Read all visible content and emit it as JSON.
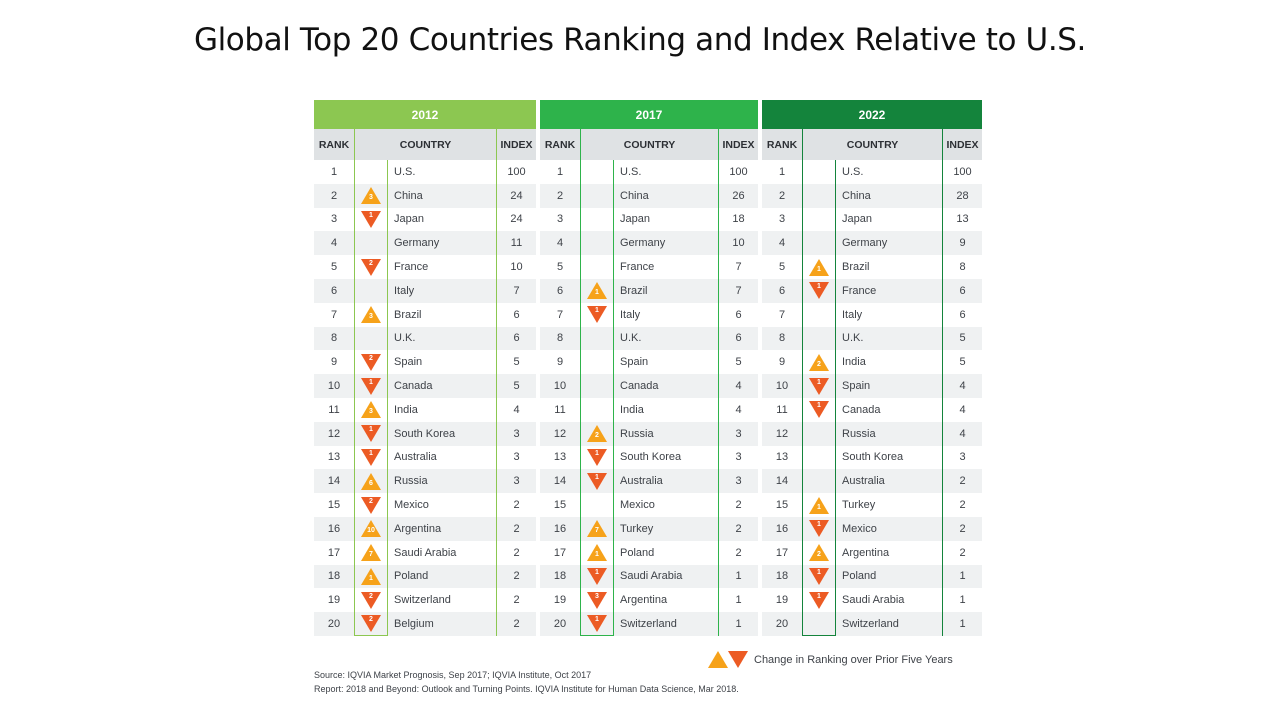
{
  "title": "Global Top 20 Countries Ranking and Index Relative to U.S.",
  "headers": {
    "rank": "RANK",
    "country": "COUNTRY",
    "index": "INDEX"
  },
  "colors": {
    "2012": "#8cc751",
    "2017": "#2eb34b",
    "2022": "#14843c",
    "up": "#f6a21a",
    "down": "#ec5b24"
  },
  "panels": [
    {
      "year": "2012",
      "rows": [
        {
          "rank": "1",
          "country": "U.S.",
          "index": "100",
          "change": null,
          "n": ""
        },
        {
          "rank": "2",
          "country": "China",
          "index": "24",
          "change": "up",
          "n": "3"
        },
        {
          "rank": "3",
          "country": "Japan",
          "index": "24",
          "change": "down",
          "n": "1"
        },
        {
          "rank": "4",
          "country": "Germany",
          "index": "11",
          "change": null,
          "n": ""
        },
        {
          "rank": "5",
          "country": "France",
          "index": "10",
          "change": "down",
          "n": "2"
        },
        {
          "rank": "6",
          "country": "Italy",
          "index": "7",
          "change": null,
          "n": ""
        },
        {
          "rank": "7",
          "country": "Brazil",
          "index": "6",
          "change": "up",
          "n": "3"
        },
        {
          "rank": "8",
          "country": "U.K.",
          "index": "6",
          "change": null,
          "n": ""
        },
        {
          "rank": "9",
          "country": "Spain",
          "index": "5",
          "change": "down",
          "n": "2"
        },
        {
          "rank": "10",
          "country": "Canada",
          "index": "5",
          "change": "down",
          "n": "1"
        },
        {
          "rank": "11",
          "country": "India",
          "index": "4",
          "change": "up",
          "n": "3"
        },
        {
          "rank": "12",
          "country": "South Korea",
          "index": "3",
          "change": "down",
          "n": "1"
        },
        {
          "rank": "13",
          "country": "Australia",
          "index": "3",
          "change": "down",
          "n": "1"
        },
        {
          "rank": "14",
          "country": "Russia",
          "index": "3",
          "change": "up",
          "n": "6"
        },
        {
          "rank": "15",
          "country": "Mexico",
          "index": "2",
          "change": "down",
          "n": "2"
        },
        {
          "rank": "16",
          "country": "Argentina",
          "index": "2",
          "change": "up",
          "n": "10"
        },
        {
          "rank": "17",
          "country": "Saudi Arabia",
          "index": "2",
          "change": "up",
          "n": "7"
        },
        {
          "rank": "18",
          "country": "Poland",
          "index": "2",
          "change": "up",
          "n": "1"
        },
        {
          "rank": "19",
          "country": "Switzerland",
          "index": "2",
          "change": "down",
          "n": "2"
        },
        {
          "rank": "20",
          "country": "Belgium",
          "index": "2",
          "change": "down",
          "n": "2"
        }
      ]
    },
    {
      "year": "2017",
      "rows": [
        {
          "rank": "1",
          "country": "U.S.",
          "index": "100",
          "change": null,
          "n": ""
        },
        {
          "rank": "2",
          "country": "China",
          "index": "26",
          "change": null,
          "n": ""
        },
        {
          "rank": "3",
          "country": "Japan",
          "index": "18",
          "change": null,
          "n": ""
        },
        {
          "rank": "4",
          "country": "Germany",
          "index": "10",
          "change": null,
          "n": ""
        },
        {
          "rank": "5",
          "country": "France",
          "index": "7",
          "change": null,
          "n": ""
        },
        {
          "rank": "6",
          "country": "Brazil",
          "index": "7",
          "change": "up",
          "n": "1"
        },
        {
          "rank": "7",
          "country": "Italy",
          "index": "6",
          "change": "down",
          "n": "1"
        },
        {
          "rank": "8",
          "country": "U.K.",
          "index": "6",
          "change": null,
          "n": ""
        },
        {
          "rank": "9",
          "country": "Spain",
          "index": "5",
          "change": null,
          "n": ""
        },
        {
          "rank": "10",
          "country": "Canada",
          "index": "4",
          "change": null,
          "n": ""
        },
        {
          "rank": "11",
          "country": "India",
          "index": "4",
          "change": null,
          "n": ""
        },
        {
          "rank": "12",
          "country": "Russia",
          "index": "3",
          "change": "up",
          "n": "2"
        },
        {
          "rank": "13",
          "country": "South Korea",
          "index": "3",
          "change": "down",
          "n": "1"
        },
        {
          "rank": "14",
          "country": "Australia",
          "index": "3",
          "change": "down",
          "n": "1"
        },
        {
          "rank": "15",
          "country": "Mexico",
          "index": "2",
          "change": null,
          "n": ""
        },
        {
          "rank": "16",
          "country": "Turkey",
          "index": "2",
          "change": "up",
          "n": "7"
        },
        {
          "rank": "17",
          "country": "Poland",
          "index": "2",
          "change": "up",
          "n": "1"
        },
        {
          "rank": "18",
          "country": "Saudi Arabia",
          "index": "1",
          "change": "down",
          "n": "1"
        },
        {
          "rank": "19",
          "country": "Argentina",
          "index": "1",
          "change": "down",
          "n": "3"
        },
        {
          "rank": "20",
          "country": "Switzerland",
          "index": "1",
          "change": "down",
          "n": "1"
        }
      ]
    },
    {
      "year": "2022",
      "rows": [
        {
          "rank": "1",
          "country": "U.S.",
          "index": "100",
          "change": null,
          "n": ""
        },
        {
          "rank": "2",
          "country": "China",
          "index": "28",
          "change": null,
          "n": ""
        },
        {
          "rank": "3",
          "country": "Japan",
          "index": "13",
          "change": null,
          "n": ""
        },
        {
          "rank": "4",
          "country": "Germany",
          "index": "9",
          "change": null,
          "n": ""
        },
        {
          "rank": "5",
          "country": "Brazil",
          "index": "8",
          "change": "up",
          "n": "1"
        },
        {
          "rank": "6",
          "country": "France",
          "index": "6",
          "change": "down",
          "n": "1"
        },
        {
          "rank": "7",
          "country": "Italy",
          "index": "6",
          "change": null,
          "n": ""
        },
        {
          "rank": "8",
          "country": "U.K.",
          "index": "5",
          "change": null,
          "n": ""
        },
        {
          "rank": "9",
          "country": "India",
          "index": "5",
          "change": "up",
          "n": "2"
        },
        {
          "rank": "10",
          "country": "Spain",
          "index": "4",
          "change": "down",
          "n": "1"
        },
        {
          "rank": "11",
          "country": "Canada",
          "index": "4",
          "change": "down",
          "n": "1"
        },
        {
          "rank": "12",
          "country": "Russia",
          "index": "4",
          "change": null,
          "n": ""
        },
        {
          "rank": "13",
          "country": "South Korea",
          "index": "3",
          "change": null,
          "n": ""
        },
        {
          "rank": "14",
          "country": "Australia",
          "index": "2",
          "change": null,
          "n": ""
        },
        {
          "rank": "15",
          "country": "Turkey",
          "index": "2",
          "change": "up",
          "n": "1"
        },
        {
          "rank": "16",
          "country": "Mexico",
          "index": "2",
          "change": "down",
          "n": "1"
        },
        {
          "rank": "17",
          "country": "Argentina",
          "index": "2",
          "change": "up",
          "n": "2"
        },
        {
          "rank": "18",
          "country": "Poland",
          "index": "1",
          "change": "down",
          "n": "1"
        },
        {
          "rank": "19",
          "country": "Saudi Arabia",
          "index": "1",
          "change": "down",
          "n": "1"
        },
        {
          "rank": "20",
          "country": "Switzerland",
          "index": "1",
          "change": null,
          "n": ""
        }
      ]
    }
  ],
  "legend": "Change in Ranking over Prior Five Years",
  "source_line1": "Source: IQVIA Market Prognosis, Sep 2017; IQVIA Institute, Oct 2017",
  "source_line2": "Report: 2018 and Beyond: Outlook and Turning Points. IQVIA Institute for Human Data Science, Mar 2018."
}
